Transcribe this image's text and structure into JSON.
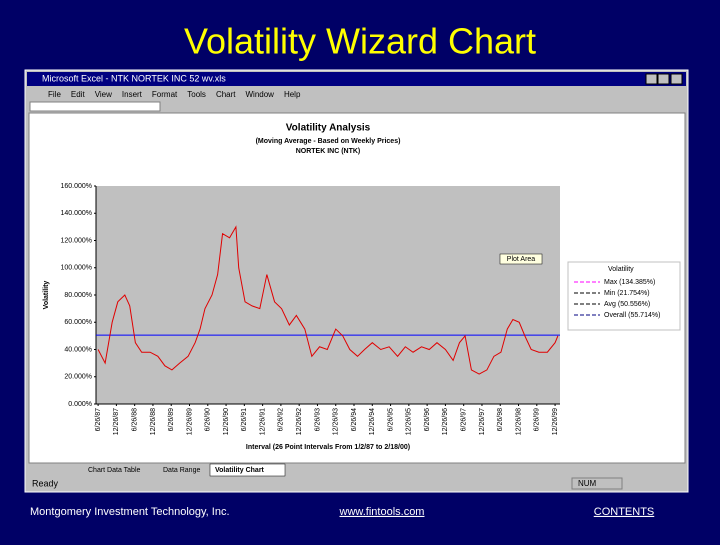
{
  "slide": {
    "title": "Volatility Wizard Chart"
  },
  "window": {
    "title": "Microsoft Excel - NTK NORTEK INC 52 wv.xls",
    "menu": [
      "File",
      "Edit",
      "View",
      "Insert",
      "Format",
      "Tools",
      "Chart",
      "Window",
      "Help"
    ],
    "tabs": [
      "Chart Data Table",
      "Data Range",
      "Volatility Chart"
    ],
    "status": [
      "Ready",
      "NUM"
    ]
  },
  "chart_data": {
    "type": "line",
    "title": "Volatility Analysis",
    "subtitle": [
      "(Moving Average - Based on Weekly Prices)",
      "NORTEK INC (NTK)"
    ],
    "y_label": "Volatility",
    "x_label": "Interval (26 Point Intervals From 1/2/87 to 2/18/00)",
    "annotation": "Plot Area",
    "xlim": [
      22,
      682
    ],
    "ylim": [
      0,
      160
    ],
    "yticks": [
      {
        "value": 0,
        "label": "0.000%"
      },
      {
        "value": 20,
        "label": "20.000%"
      },
      {
        "value": 40,
        "label": "40.000%"
      },
      {
        "value": 60,
        "label": "60.000%"
      },
      {
        "value": 80,
        "label": "80.000%"
      },
      {
        "value": 100,
        "label": "100.000%"
      },
      {
        "value": 120,
        "label": "120.000%"
      },
      {
        "value": 140,
        "label": "140.000%"
      },
      {
        "value": 160,
        "label": "160.000%"
      }
    ],
    "xticks": [
      {
        "value": 25,
        "label": "6/26/87"
      },
      {
        "value": 51,
        "label": "12/26/87"
      },
      {
        "value": 77,
        "label": "6/26/88"
      },
      {
        "value": 103,
        "label": "12/26/88"
      },
      {
        "value": 129,
        "label": "6/26/89"
      },
      {
        "value": 155,
        "label": "12/26/89"
      },
      {
        "value": 181,
        "label": "6/26/90"
      },
      {
        "value": 207,
        "label": "12/26/90"
      },
      {
        "value": 233,
        "label": "6/26/91"
      },
      {
        "value": 259,
        "label": "12/26/91"
      },
      {
        "value": 285,
        "label": "6/26/92"
      },
      {
        "value": 311,
        "label": "12/26/92"
      },
      {
        "value": 337,
        "label": "6/26/93"
      },
      {
        "value": 363,
        "label": "12/26/93"
      },
      {
        "value": 389,
        "label": "6/26/94"
      },
      {
        "value": 415,
        "label": "12/26/94"
      },
      {
        "value": 441,
        "label": "6/26/95"
      },
      {
        "value": 467,
        "label": "12/26/95"
      },
      {
        "value": 493,
        "label": "6/26/96"
      },
      {
        "value": 519,
        "label": "12/26/96"
      },
      {
        "value": 545,
        "label": "6/26/97"
      },
      {
        "value": 571,
        "label": "12/26/97"
      },
      {
        "value": 597,
        "label": "6/26/98"
      },
      {
        "value": 623,
        "label": "12/26/98"
      },
      {
        "value": 649,
        "label": "6/26/99"
      },
      {
        "value": 675,
        "label": "12/26/99"
      }
    ],
    "x": [
      25,
      35,
      45,
      53,
      63,
      70,
      78,
      87,
      99,
      110,
      120,
      130,
      141,
      153,
      163,
      170,
      177,
      187,
      195,
      202,
      212,
      221,
      225,
      234,
      244,
      255,
      265,
      276,
      286,
      297,
      307,
      319,
      329,
      340,
      351,
      363,
      373,
      383,
      394,
      404,
      415,
      427,
      439,
      451,
      462,
      473,
      485,
      496,
      507,
      519,
      530,
      539,
      547,
      556,
      567,
      578,
      588,
      598,
      607,
      615,
      624,
      632,
      641,
      652,
      664,
      675,
      679
    ],
    "series": [
      {
        "name": "Volatility",
        "color": "#e00000",
        "values": [
          40,
          30,
          60,
          75,
          80,
          72,
          45,
          38,
          38,
          35,
          28,
          25,
          30,
          35,
          45,
          55,
          70,
          80,
          95,
          125,
          122,
          130,
          100,
          75,
          72,
          70,
          95,
          75,
          70,
          58,
          65,
          55,
          35,
          42,
          40,
          55,
          50,
          40,
          35,
          40,
          45,
          40,
          42,
          35,
          42,
          38,
          42,
          40,
          45,
          40,
          32,
          45,
          50,
          25,
          22,
          25,
          35,
          38,
          55,
          62,
          60,
          50,
          40,
          38,
          38,
          45,
          50
        ]
      }
    ],
    "reference_line": {
      "value": 50.556,
      "color": "#0000ff"
    },
    "legend": [
      {
        "name": "Max (134.385%)",
        "color": "#ff00ff",
        "dash": true
      },
      {
        "name": "Min (21.754%)",
        "color": "#000000",
        "dash": true
      },
      {
        "name": "Avg (50.556%)",
        "color": "#000000",
        "dash": true
      },
      {
        "name": "Overall (55.714%)",
        "color": "#000080",
        "dash": true
      }
    ]
  },
  "footer": {
    "company": "Montgomery Investment Technology, Inc.",
    "url": "www.fintools.com",
    "contents": "CONTENTS"
  }
}
